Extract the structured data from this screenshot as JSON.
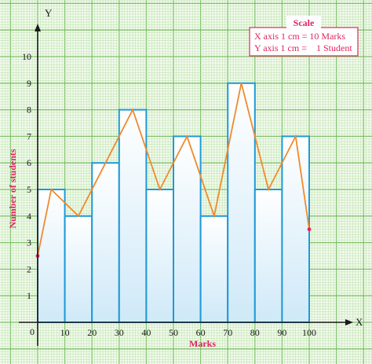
{
  "chart_data": {
    "type": "bar",
    "subtype": "histogram with frequency polygon",
    "axis_letters": {
      "x": "X",
      "y": "Y",
      "origin": "0"
    },
    "xlabel": "Marks",
    "ylabel": "Number of students",
    "x_ticks": [
      "10",
      "20",
      "30",
      "40",
      "50",
      "60",
      "70",
      "80",
      "90",
      "100"
    ],
    "y_ticks": [
      "1",
      "2",
      "3",
      "4",
      "5",
      "6",
      "7",
      "8",
      "9",
      "10"
    ],
    "xlim": [
      0,
      110
    ],
    "ylim": [
      0,
      11
    ],
    "grid": true,
    "bins": [
      {
        "from": 0,
        "to": 10,
        "value": 5
      },
      {
        "from": 10,
        "to": 20,
        "value": 4
      },
      {
        "from": 20,
        "to": 30,
        "value": 6
      },
      {
        "from": 30,
        "to": 40,
        "value": 8
      },
      {
        "from": 40,
        "to": 50,
        "value": 5
      },
      {
        "from": 50,
        "to": 60,
        "value": 7
      },
      {
        "from": 60,
        "to": 70,
        "value": 4
      },
      {
        "from": 70,
        "to": 80,
        "value": 9
      },
      {
        "from": 80,
        "to": 90,
        "value": 5
      },
      {
        "from": 90,
        "to": 100,
        "value": 7
      }
    ],
    "polygon": {
      "x": [
        0,
        5,
        15,
        25,
        35,
        45,
        55,
        65,
        75,
        85,
        95,
        100
      ],
      "y": [
        2.5,
        5,
        4,
        6,
        8,
        5,
        7,
        4,
        9,
        5,
        7,
        3.5
      ]
    },
    "scale_box": {
      "title": "Scale",
      "lines": [
        "X axis 1 cm = 10 Marks",
        "Y axis 1 cm =    1 Student"
      ]
    },
    "legend_position": "top-right",
    "colors": {
      "grid_major": "#7fc06a",
      "grid_minor": "#bfe3ae",
      "background": "#f3fbef",
      "bar_stroke": "#1e9ad6",
      "bar_fill_top": "#ffffff",
      "bar_fill_bottom": "#cfe9f8",
      "polygon": "#f08a2c",
      "accent_text": "#e0245e",
      "axis": "#1a1a1a"
    }
  }
}
